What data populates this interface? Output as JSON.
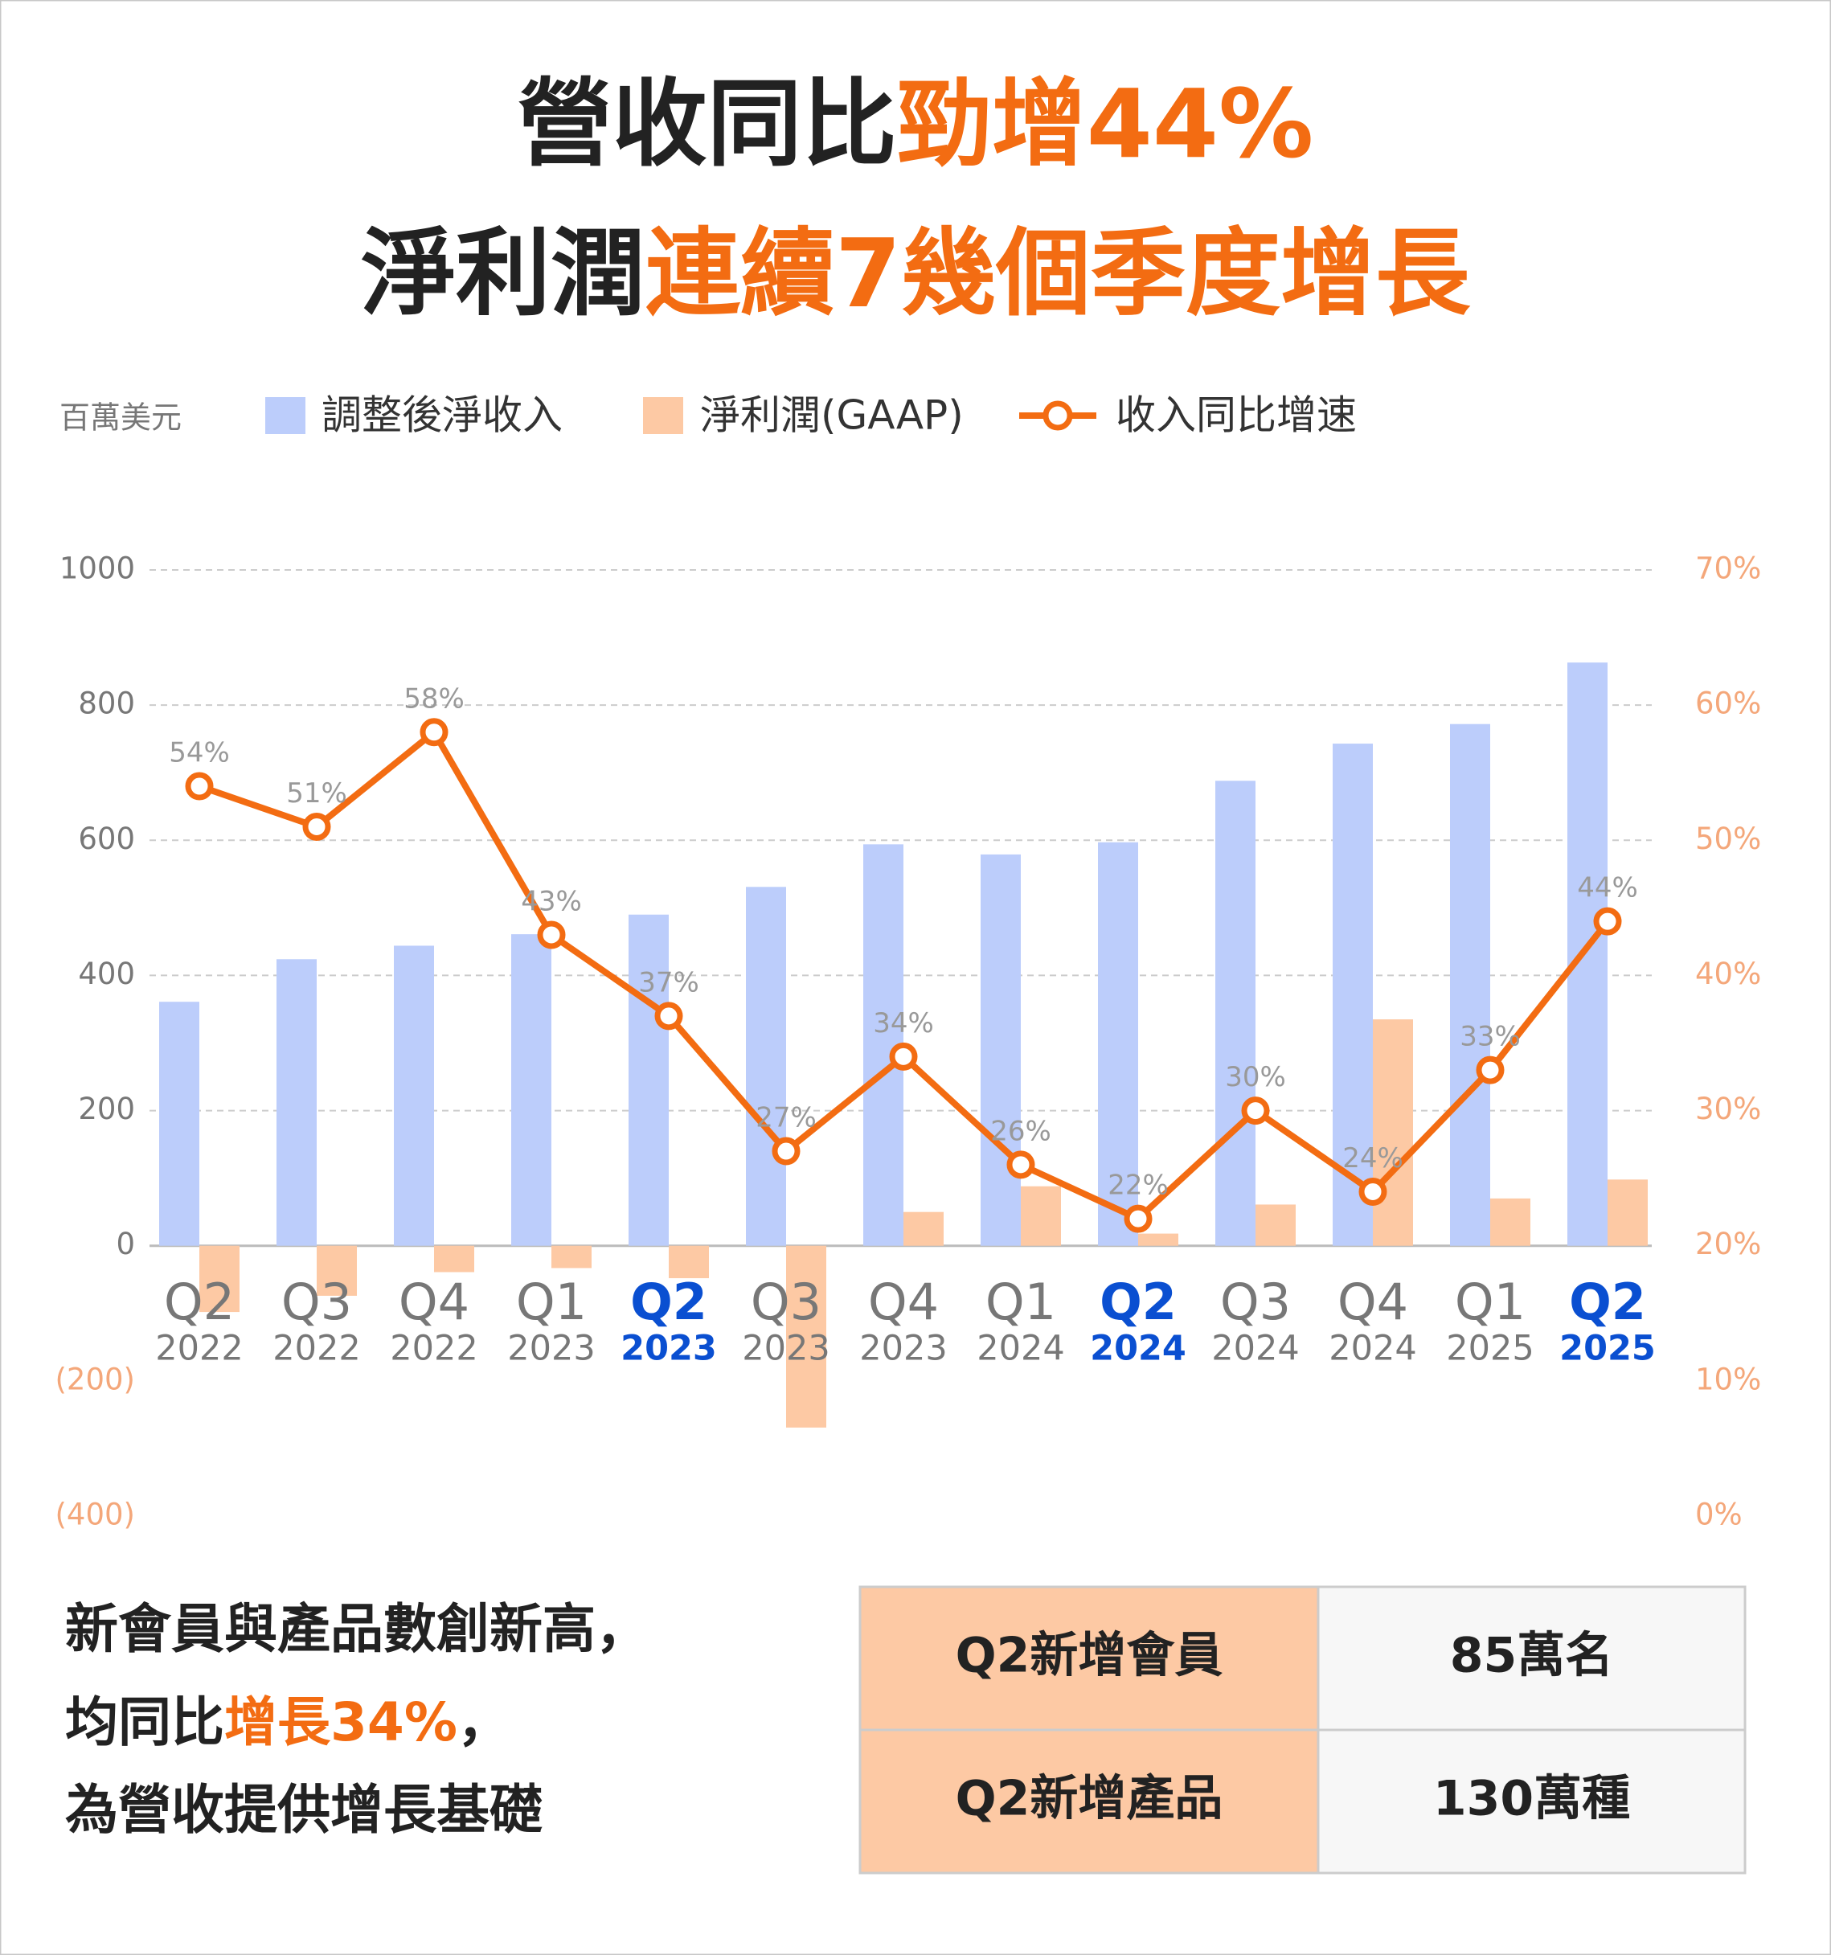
{
  "chart_data": {
    "type": "bar",
    "title_lines": [
      [
        "營收同比",
        "勁增44%"
      ],
      [
        "淨利潤",
        "連續7幾個季度增長"
      ]
    ],
    "unit_label": "百萬美元",
    "categories": [
      {
        "quarter": "Q2",
        "year": "2022",
        "highlight": false
      },
      {
        "quarter": "Q3",
        "year": "2022",
        "highlight": false
      },
      {
        "quarter": "Q4",
        "year": "2022",
        "highlight": false
      },
      {
        "quarter": "Q1",
        "year": "2023",
        "highlight": false
      },
      {
        "quarter": "Q2",
        "year": "2023",
        "highlight": true
      },
      {
        "quarter": "Q3",
        "year": "2023",
        "highlight": false
      },
      {
        "quarter": "Q4",
        "year": "2023",
        "highlight": false
      },
      {
        "quarter": "Q1",
        "year": "2024",
        "highlight": false
      },
      {
        "quarter": "Q2",
        "year": "2024",
        "highlight": true
      },
      {
        "quarter": "Q3",
        "year": "2024",
        "highlight": false
      },
      {
        "quarter": "Q4",
        "year": "2024",
        "highlight": false
      },
      {
        "quarter": "Q1",
        "year": "2025",
        "highlight": false
      },
      {
        "quarter": "Q2",
        "year": "2025",
        "highlight": true
      }
    ],
    "highlight_color": "#0a4fd1",
    "series": [
      {
        "name": "調整後淨收入",
        "type": "bar",
        "color": "#bccdfb",
        "values": [
          361,
          424,
          444,
          461,
          490,
          531,
          594,
          579,
          597,
          688,
          743,
          772,
          863
        ]
      },
      {
        "name": "淨利潤(GAAP)",
        "type": "bar",
        "color": "#fdc9a4",
        "values": [
          -98,
          -74,
          -39,
          -33,
          -48,
          -269,
          50,
          88,
          18,
          61,
          335,
          70,
          98
        ]
      },
      {
        "name": "收入同比增速",
        "type": "line",
        "axis": "y2",
        "color": "#f36c12",
        "values": [
          54,
          51,
          58,
          43,
          37,
          27,
          34,
          26,
          22,
          30,
          24,
          33,
          44
        ],
        "value_labels": [
          "54%",
          "51%",
          "58%",
          "43%",
          "37%",
          "27%",
          "34%",
          "26%",
          "22%",
          "30%",
          "24%",
          "33%",
          "44%"
        ]
      }
    ],
    "ylim": [
      -400,
      1000
    ],
    "yticks": [
      1000,
      800,
      600,
      400,
      200,
      0,
      {
        "value": -200,
        "label": "(200)"
      },
      {
        "value": -400,
        "label": "(400)"
      }
    ],
    "y2lim": [
      0,
      70
    ],
    "y2ticks": [
      {
        "value": 70,
        "label": "70%"
      },
      {
        "value": 60,
        "label": "60%"
      },
      {
        "value": 50,
        "label": "50%"
      },
      {
        "value": 40,
        "label": "40%"
      },
      {
        "value": 30,
        "label": "30%"
      },
      {
        "value": 20,
        "label": "20%"
      },
      {
        "value": 10,
        "label": "10%"
      },
      {
        "value": 0,
        "label": "0%"
      }
    ],
    "grid": true
  },
  "summary": {
    "lines": [
      [
        "新會員與產品數創新高，"
      ],
      [
        "均同比",
        "增長34%",
        "，"
      ],
      [
        "為營收提供增長基礎"
      ]
    ],
    "table": {
      "rows": [
        [
          "Q2新增會員",
          "85萬名"
        ],
        [
          "Q2新增產品",
          "130萬種"
        ]
      ]
    }
  }
}
